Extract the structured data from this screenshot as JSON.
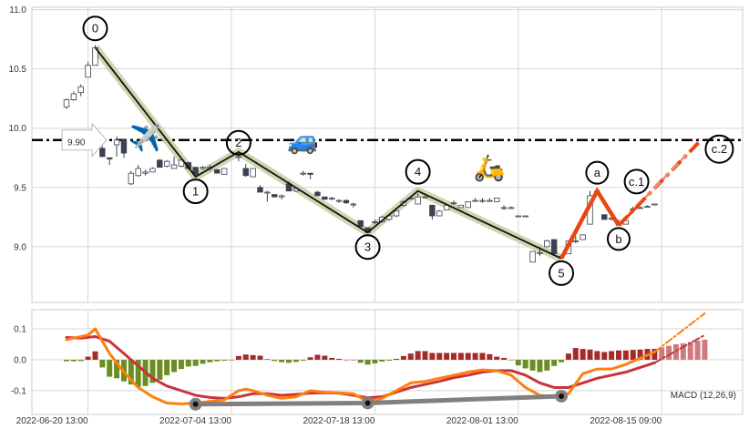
{
  "chart_data": [
    {
      "type": "candlestick",
      "title": "",
      "ylim": [
        8.53,
        11.02
      ],
      "yticks": [
        "9.0",
        "9.5",
        "10.0",
        "10.5",
        "11.0"
      ],
      "ytick_values": [
        9.0,
        9.5,
        10.0,
        10.5,
        11.0
      ],
      "grid": true,
      "candle_format": "[index, open, high, low, close]",
      "candles": [
        [
          0,
          10.18,
          10.25,
          10.16,
          10.24
        ],
        [
          1,
          10.24,
          10.31,
          10.23,
          10.29
        ],
        [
          2,
          10.3,
          10.37,
          10.27,
          10.35
        ],
        [
          3,
          10.43,
          10.56,
          10.43,
          10.53
        ],
        [
          4,
          10.53,
          10.7,
          10.53,
          10.68
        ],
        [
          5,
          9.83,
          9.85,
          9.76,
          9.76
        ],
        [
          6,
          9.75,
          9.75,
          9.69,
          9.74
        ],
        [
          7,
          9.86,
          9.93,
          9.76,
          9.9
        ],
        [
          8,
          9.9,
          9.91,
          9.75,
          9.79
        ],
        [
          9,
          9.53,
          9.64,
          9.52,
          9.62
        ],
        [
          10,
          9.6,
          9.69,
          9.59,
          9.66
        ],
        [
          11,
          9.62,
          9.65,
          9.6,
          9.63
        ],
        [
          12,
          9.63,
          9.67,
          9.63,
          9.66
        ],
        [
          13,
          9.73,
          9.74,
          9.67,
          9.67
        ],
        [
          14,
          9.68,
          9.73,
          9.67,
          9.72
        ],
        [
          15,
          9.66,
          9.76,
          9.66,
          9.69
        ],
        [
          16,
          9.68,
          9.73,
          9.67,
          9.73
        ],
        [
          17,
          9.71,
          9.71,
          9.65,
          9.66
        ],
        [
          18,
          9.67,
          9.67,
          9.6,
          9.61
        ],
        [
          19,
          9.66,
          9.68,
          9.65,
          9.67
        ],
        [
          20,
          9.66,
          9.69,
          9.64,
          9.67
        ],
        [
          21,
          9.65,
          9.65,
          9.62,
          9.62
        ],
        [
          22,
          9.61,
          9.66,
          9.61,
          9.66
        ],
        [
          24,
          9.76,
          9.8,
          9.72,
          9.76
        ],
        [
          25,
          9.66,
          9.7,
          9.59,
          9.6
        ],
        [
          26,
          9.59,
          9.66,
          9.59,
          9.66
        ],
        [
          27,
          9.5,
          9.52,
          9.46,
          9.46
        ],
        [
          28,
          9.46,
          9.47,
          9.38,
          9.46
        ],
        [
          29,
          9.44,
          9.44,
          9.42,
          9.42
        ],
        [
          30,
          9.42,
          9.44,
          9.4,
          9.43
        ],
        [
          31,
          9.53,
          9.55,
          9.47,
          9.47
        ],
        [
          32,
          9.47,
          9.49,
          9.46,
          9.49
        ],
        [
          33,
          9.62,
          9.64,
          9.6,
          9.62
        ],
        [
          34,
          9.62,
          9.62,
          9.57,
          9.61
        ],
        [
          35,
          9.46,
          9.47,
          9.43,
          9.43
        ],
        [
          36,
          9.42,
          9.42,
          9.4,
          9.4
        ],
        [
          37,
          9.41,
          9.42,
          9.39,
          9.41
        ],
        [
          38,
          9.39,
          9.4,
          9.37,
          9.39
        ],
        [
          39,
          9.39,
          9.4,
          9.36,
          9.37
        ],
        [
          40,
          9.36,
          9.37,
          9.33,
          9.36
        ],
        [
          41,
          9.22,
          9.22,
          9.17,
          9.17
        ],
        [
          42,
          9.16,
          9.16,
          9.12,
          9.12
        ],
        [
          43,
          9.21,
          9.23,
          9.19,
          9.21
        ],
        [
          44,
          9.21,
          9.26,
          9.21,
          9.25
        ],
        [
          45,
          9.23,
          9.27,
          9.22,
          9.26
        ],
        [
          46,
          9.26,
          9.3,
          9.25,
          9.3
        ],
        [
          47,
          9.35,
          9.39,
          9.34,
          9.38
        ],
        [
          48,
          9.41,
          9.42,
          9.4,
          9.41
        ],
        [
          49,
          9.36,
          9.45,
          9.36,
          9.42
        ],
        [
          50,
          9.42,
          9.43,
          9.41,
          9.42
        ],
        [
          51,
          9.35,
          9.35,
          9.23,
          9.26
        ],
        [
          52,
          9.26,
          9.31,
          9.26,
          9.3
        ],
        [
          53,
          9.31,
          9.35,
          9.31,
          9.35
        ],
        [
          54,
          9.37,
          9.39,
          9.35,
          9.37
        ],
        [
          55,
          9.33,
          9.35,
          9.33,
          9.35
        ],
        [
          56,
          9.33,
          9.38,
          9.33,
          9.38
        ],
        [
          57,
          9.39,
          9.41,
          9.38,
          9.39
        ],
        [
          58,
          9.39,
          9.41,
          9.37,
          9.39
        ],
        [
          59,
          9.39,
          9.41,
          9.38,
          9.39
        ],
        [
          60,
          9.38,
          9.41,
          9.38,
          9.41
        ],
        [
          61,
          9.33,
          9.35,
          9.31,
          9.33
        ],
        [
          62,
          9.33,
          9.34,
          9.33,
          9.33
        ],
        [
          63,
          9.26,
          9.26,
          9.26,
          9.26
        ],
        [
          64,
          9.26,
          9.26,
          9.25,
          9.26
        ],
        [
          65,
          8.87,
          8.96,
          8.87,
          8.96
        ],
        [
          66,
          8.95,
          9.0,
          8.92,
          8.95
        ],
        [
          67,
          9.0,
          9.06,
          9.0,
          9.05
        ],
        [
          68,
          9.06,
          9.06,
          8.94,
          8.94
        ],
        [
          69,
          8.92,
          8.93,
          8.9,
          8.92
        ],
        [
          70,
          8.94,
          9.05,
          8.94,
          9.05
        ],
        [
          71,
          9.05,
          9.09,
          9.03,
          9.05
        ],
        [
          72,
          9.06,
          9.1,
          9.06,
          9.1
        ],
        [
          73,
          9.19,
          9.47,
          9.19,
          9.43
        ],
        [
          74,
          9.47,
          9.48,
          9.44,
          9.47
        ],
        [
          75,
          9.27,
          9.27,
          9.23,
          9.23
        ],
        [
          76,
          9.24,
          9.27,
          9.22,
          9.24
        ],
        [
          77,
          9.19,
          9.23,
          9.18,
          9.19
        ],
        [
          78,
          9.19,
          9.22,
          9.19,
          9.22
        ],
        [
          79,
          9.32,
          9.34,
          9.3,
          9.32
        ],
        [
          80,
          9.33,
          9.34,
          9.32,
          9.33
        ],
        [
          81,
          9.34,
          9.35,
          9.33,
          9.34
        ],
        [
          82,
          9.36,
          9.36,
          9.35,
          9.36
        ]
      ],
      "impulse_wave": [
        {
          "label": "0",
          "i": 4,
          "price": 10.68,
          "pos": "above"
        },
        {
          "label": "1",
          "i": 18,
          "price": 9.59,
          "pos": "below"
        },
        {
          "label": "2",
          "i": 24,
          "price": 9.8,
          "pos": "on"
        },
        {
          "label": "3",
          "i": 42,
          "price": 9.12,
          "pos": "below"
        },
        {
          "label": "4",
          "i": 49,
          "price": 9.47,
          "pos": "above"
        },
        {
          "label": "5",
          "i": 69,
          "price": 8.9,
          "pos": "below"
        }
      ],
      "correction_wave": [
        {
          "label": "a",
          "i": 74,
          "price": 9.47,
          "pos": "above"
        },
        {
          "label": "b",
          "i": 77,
          "price": 9.18,
          "pos": "below"
        }
      ],
      "projection": [
        {
          "label": "c.1",
          "i": 80,
          "price": 9.38,
          "pos": "above"
        },
        {
          "label": "c.2",
          "i": 89,
          "price": 9.9,
          "pos": "right"
        }
      ],
      "hline": {
        "value": 9.9,
        "label": "9.90"
      },
      "emojis": [
        {
          "name": "airplane",
          "char": "✈️",
          "i": 11,
          "price": 9.92
        },
        {
          "name": "car",
          "char": "🚙",
          "i": 33,
          "price": 9.9
        },
        {
          "name": "scooter",
          "char": "🛵",
          "i": 59,
          "price": 9.67
        }
      ]
    },
    {
      "type": "macd",
      "label": "MACD (12,26,9)",
      "ylim": [
        -0.177,
        0.162
      ],
      "yticks": [
        "-0.1",
        "0.0",
        "0.1"
      ],
      "ytick_values": [
        -0.1,
        0.0,
        0.1
      ],
      "xticks": [
        {
          "label": "2022-06-20 13:00",
          "i": 3
        },
        {
          "label": "2022-07-04 13:00",
          "i": 23
        },
        {
          "label": "2022-07-18 13:00",
          "i": 43
        },
        {
          "label": "2022-08-01 13:00",
          "i": 63
        },
        {
          "label": "2022-08-15 09:00",
          "i": 83
        }
      ],
      "histogram": [
        -0.005,
        -0.005,
        -0.004,
        0.01,
        0.027,
        -0.025,
        -0.055,
        -0.06,
        -0.07,
        -0.08,
        -0.088,
        -0.085,
        -0.075,
        -0.065,
        -0.05,
        -0.04,
        -0.03,
        -0.022,
        -0.02,
        -0.013,
        -0.008,
        -0.005,
        -0.003,
        0,
        0.012,
        0.017,
        0.015,
        0.013,
        0.002,
        -0.004,
        -0.008,
        -0.01,
        -0.007,
        -0.003,
        0.008,
        0.016,
        0.013,
        0.006,
        0.003,
        0,
        0,
        -0.01,
        -0.016,
        -0.012,
        -0.006,
        -0.003,
        0.003,
        0.012,
        0.02,
        0.028,
        0.028,
        0.022,
        0.022,
        0.022,
        0.022,
        0.022,
        0.022,
        0.022,
        0.022,
        0.018,
        0.01,
        0.006,
        0,
        -0.018,
        -0.028,
        -0.035,
        -0.04,
        -0.035,
        -0.02,
        -0.008,
        0.02,
        0.038,
        0.035,
        0.033,
        0.028,
        0.025,
        0.028,
        0.03,
        0.03,
        0.032,
        0.033,
        0.035,
        0.035
      ],
      "histogram_projected": [
        0.04,
        0.045,
        0.05,
        0.053,
        0.057,
        0.062,
        0.065
      ],
      "macd": [
        [
          0,
          0.065
        ],
        [
          3,
          0.08
        ],
        [
          4,
          0.1
        ],
        [
          6,
          0.02
        ],
        [
          8,
          -0.04
        ],
        [
          10,
          -0.09
        ],
        [
          12,
          -0.12
        ],
        [
          14,
          -0.14
        ],
        [
          16,
          -0.143
        ],
        [
          18,
          -0.14
        ],
        [
          20,
          -0.135
        ],
        [
          22,
          -0.13
        ],
        [
          24,
          -0.1
        ],
        [
          25,
          -0.095
        ],
        [
          26,
          -0.1
        ],
        [
          28,
          -0.115
        ],
        [
          30,
          -0.125
        ],
        [
          32,
          -0.12
        ],
        [
          34,
          -0.1
        ],
        [
          36,
          -0.105
        ],
        [
          38,
          -0.107
        ],
        [
          40,
          -0.11
        ],
        [
          42,
          -0.135
        ],
        [
          44,
          -0.125
        ],
        [
          46,
          -0.1
        ],
        [
          48,
          -0.075
        ],
        [
          50,
          -0.07
        ],
        [
          52,
          -0.06
        ],
        [
          54,
          -0.05
        ],
        [
          56,
          -0.04
        ],
        [
          58,
          -0.033
        ],
        [
          60,
          -0.035
        ],
        [
          62,
          -0.05
        ],
        [
          64,
          -0.09
        ],
        [
          66,
          -0.115
        ],
        [
          68,
          -0.12
        ],
        [
          70,
          -0.11
        ],
        [
          72,
          -0.045
        ],
        [
          74,
          -0.03
        ],
        [
          76,
          -0.03
        ],
        [
          78,
          -0.015
        ],
        [
          80,
          0.005
        ],
        [
          82,
          0.025
        ]
      ],
      "macd_projected": [
        [
          82,
          0.025
        ],
        [
          89,
          0.15
        ]
      ],
      "signal": [
        [
          0,
          0.072
        ],
        [
          2,
          0.07
        ],
        [
          4,
          0.075
        ],
        [
          6,
          0.06
        ],
        [
          8,
          0.02
        ],
        [
          10,
          -0.02
        ],
        [
          12,
          -0.06
        ],
        [
          14,
          -0.085
        ],
        [
          16,
          -0.1
        ],
        [
          18,
          -0.115
        ],
        [
          20,
          -0.122
        ],
        [
          22,
          -0.125
        ],
        [
          24,
          -0.12
        ],
        [
          26,
          -0.11
        ],
        [
          28,
          -0.11
        ],
        [
          30,
          -0.115
        ],
        [
          32,
          -0.112
        ],
        [
          34,
          -0.108
        ],
        [
          36,
          -0.107
        ],
        [
          38,
          -0.108
        ],
        [
          40,
          -0.115
        ],
        [
          42,
          -0.123
        ],
        [
          44,
          -0.12
        ],
        [
          46,
          -0.105
        ],
        [
          48,
          -0.09
        ],
        [
          50,
          -0.08
        ],
        [
          52,
          -0.07
        ],
        [
          54,
          -0.058
        ],
        [
          56,
          -0.05
        ],
        [
          58,
          -0.04
        ],
        [
          60,
          -0.035
        ],
        [
          62,
          -0.035
        ],
        [
          64,
          -0.05
        ],
        [
          66,
          -0.075
        ],
        [
          68,
          -0.09
        ],
        [
          70,
          -0.09
        ],
        [
          72,
          -0.075
        ],
        [
          74,
          -0.06
        ],
        [
          76,
          -0.05
        ],
        [
          78,
          -0.04
        ],
        [
          80,
          -0.025
        ],
        [
          82,
          -0.01
        ]
      ],
      "signal_projected": [
        [
          82,
          -0.01
        ],
        [
          89,
          0.08
        ]
      ],
      "divergence": [
        [
          18,
          -0.144
        ],
        [
          42,
          -0.14
        ],
        [
          69,
          -0.118
        ]
      ]
    }
  ],
  "colors": {
    "up_outline": "#3a4150",
    "down_fill": "#3a4150",
    "wave_line": "#111111",
    "wave_halo": "#c9d3a8",
    "correction": "#e8460f",
    "projection_light": "#f0907a",
    "macd": "#ff7f0e",
    "signal": "#c8343c",
    "hist_pos": "#a52a2a",
    "hist_neg": "#6b8e23",
    "hist_proj": "#cd7a80",
    "divergence": "#808080"
  }
}
